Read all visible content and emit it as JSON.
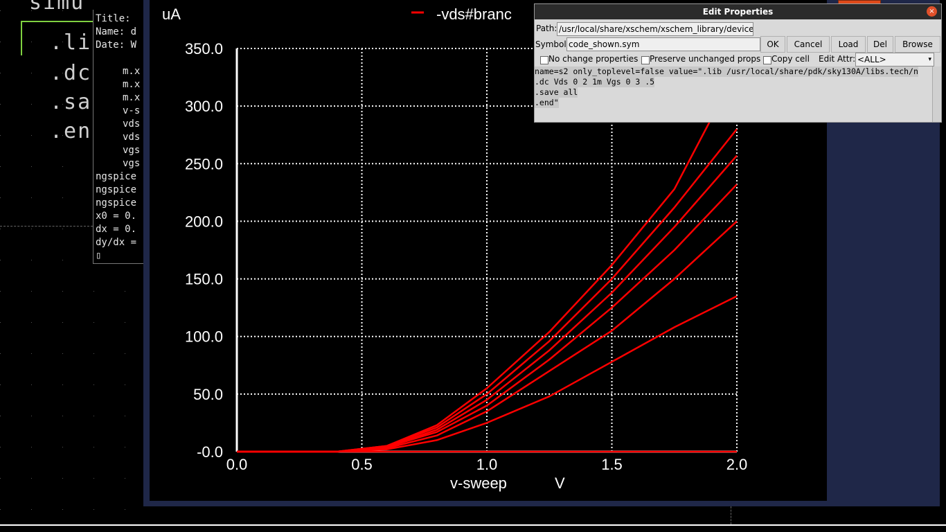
{
  "schematic": {
    "code_lines": [
      "simu",
      ".li",
      ".dc",
      ".sa",
      ".en"
    ]
  },
  "terminal": {
    "lines": [
      "Title:",
      "Name: d",
      "Date: W",
      "m.x",
      "m.x",
      "m.x",
      "v-s",
      "vds",
      "vds",
      "vgs",
      "vgs",
      "ngspice",
      "ngspice",
      "ngspice",
      "x0 = 0.",
      "dx = 0.",
      "dy/dx =",
      "▯"
    ]
  },
  "plot": {
    "y_unit": "uA",
    "legend_label": "-vds#branc",
    "x_label": "v-sweep",
    "x_unit": "V",
    "colors": {
      "trace": "#ff0000",
      "grid": "#ffffff",
      "axis": "#ffffff"
    }
  },
  "chart_data": {
    "type": "line",
    "title": "",
    "xlabel": "v-sweep",
    "xunit": "V",
    "ylabel": "uA",
    "xlim": [
      0.0,
      2.0
    ],
    "ylim": [
      -0.0,
      350.0
    ],
    "xticks": [
      "0.0",
      "0.5",
      "1.0",
      "1.5",
      "2.0"
    ],
    "yticks": [
      "-0.0",
      "50.0",
      "100.0",
      "150.0",
      "200.0",
      "250.0",
      "300.0",
      "350.0"
    ],
    "grid": true,
    "legend": [
      "-vds#branc"
    ],
    "series": [
      {
        "name": "-vds#branch",
        "x": [
          0,
          0.5,
          0.75,
          1.0,
          1.25,
          1.5,
          1.75,
          2.0
        ],
        "values": [
          0,
          0,
          0,
          0,
          0,
          0,
          0,
          0
        ]
      },
      {
        "name": "-vds#branch",
        "x": [
          0,
          0.4,
          0.6,
          0.8,
          1.0,
          1.25,
          1.5,
          1.75,
          2.0
        ],
        "values": [
          0,
          0,
          2,
          10,
          25,
          48,
          78,
          108,
          135
        ]
      },
      {
        "name": "-vds#branch",
        "x": [
          0,
          0.4,
          0.6,
          0.8,
          1.0,
          1.25,
          1.5,
          1.75,
          2.0
        ],
        "values": [
          0,
          0,
          3,
          14,
          35,
          70,
          105,
          150,
          200
        ]
      },
      {
        "name": "-vds#branch",
        "x": [
          0,
          0.4,
          0.6,
          0.8,
          1.0,
          1.25,
          1.5,
          1.75,
          2.0
        ],
        "values": [
          0,
          0,
          4,
          17,
          40,
          80,
          125,
          175,
          232
        ]
      },
      {
        "name": "-vds#branch",
        "x": [
          0,
          0.4,
          0.6,
          0.8,
          1.0,
          1.25,
          1.5,
          1.75,
          2.0
        ],
        "values": [
          0,
          0,
          4,
          19,
          45,
          88,
          138,
          195,
          257
        ]
      },
      {
        "name": "-vds#branch",
        "x": [
          0,
          0.4,
          0.6,
          0.8,
          1.0,
          1.25,
          1.5,
          1.75,
          2.0
        ],
        "values": [
          0,
          0,
          5,
          21,
          50,
          96,
          150,
          212,
          280
        ]
      },
      {
        "name": "-vds#branch",
        "x": [
          0,
          0.4,
          0.6,
          0.8,
          1.0,
          1.25,
          1.5,
          1.75,
          1.9
        ],
        "values": [
          0,
          0,
          5,
          23,
          55,
          104,
          162,
          228,
          290
        ]
      }
    ]
  },
  "dialog": {
    "title": "Edit Properties",
    "close_icon": "×",
    "path_label": "Path:",
    "path_value": "/usr/local/share/xschem/xschem_library/devices",
    "symbol_label": "Symbol",
    "symbol_value": "code_shown.sym",
    "ok_label": "OK",
    "cancel_label": "Cancel",
    "load_label": "Load",
    "del_label": "Del",
    "browse_label": "Browse",
    "no_change_label": "No change properties",
    "preserve_label": "Preserve unchanged props",
    "copy_cell_label": "Copy cell",
    "edit_attr_label": "Edit Attr:",
    "edit_attr_value": "<ALL>",
    "text_lines": [
      "name=s2 only_toplevel=false value=\".lib /usr/local/share/pdk/sky130A/libs.tech/n",
      ".dc Vds 0 2 1m Vgs 0 3 .5",
      ".save all",
      ".end\""
    ]
  }
}
